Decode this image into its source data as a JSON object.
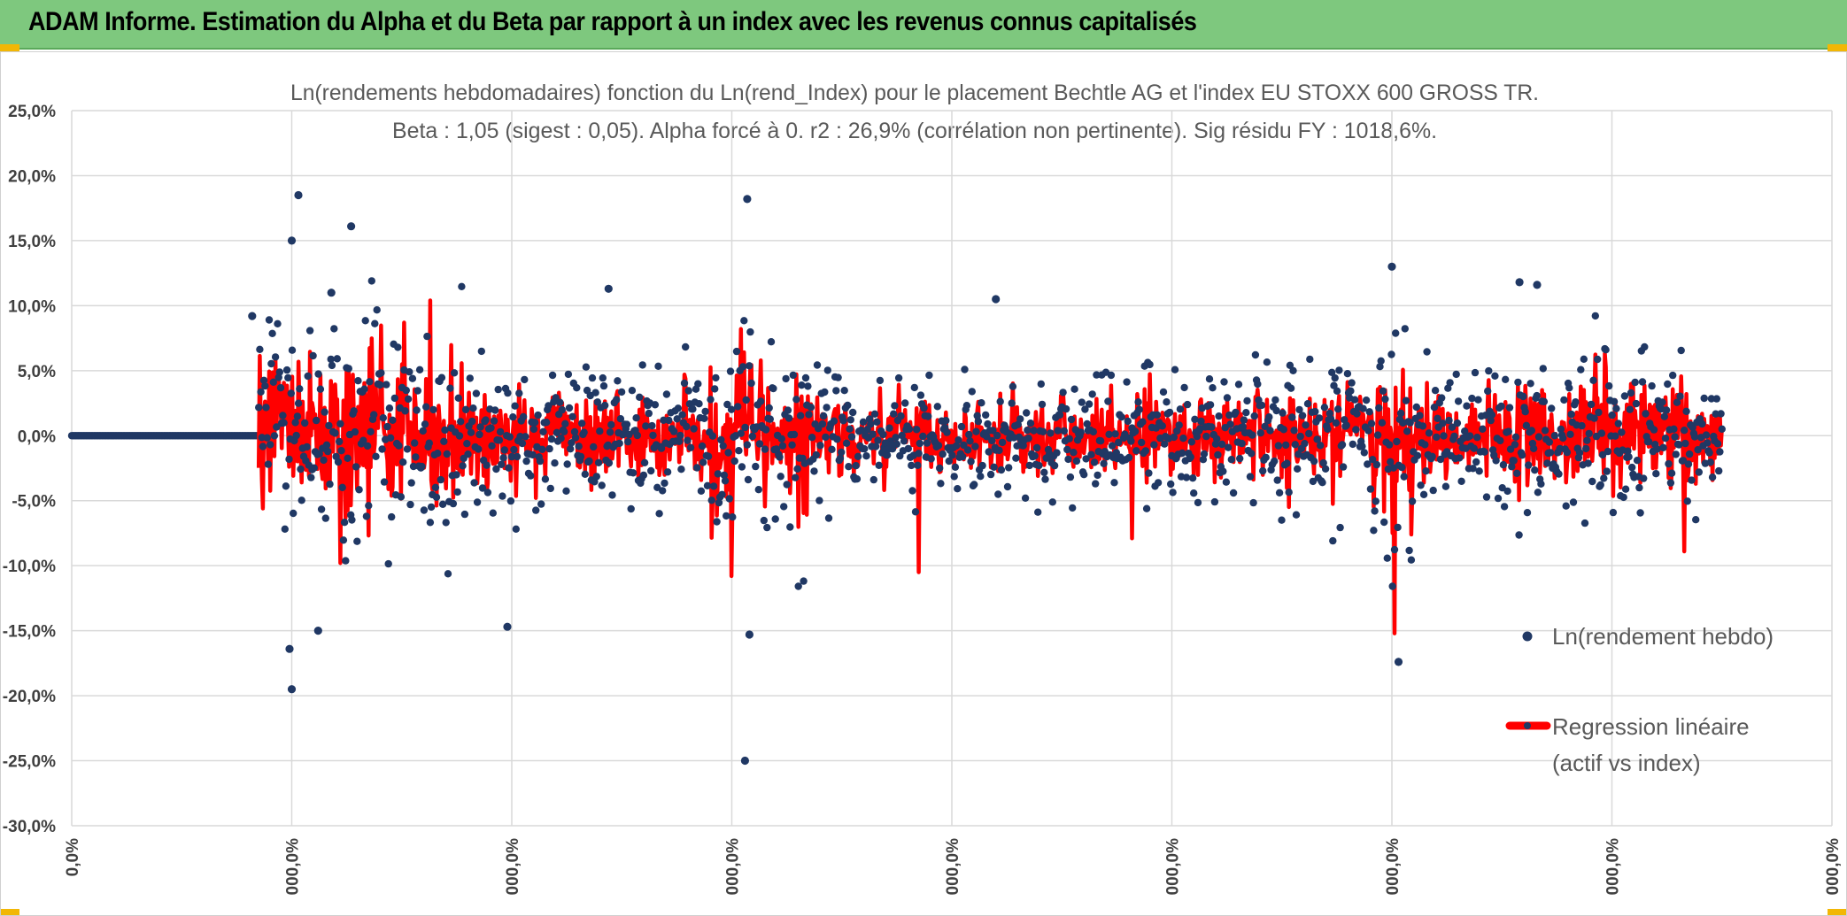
{
  "banner": {
    "title": "ADAM Informe. Estimation du Alpha et du Beta par rapport à un index avec les revenus connus capitalisés"
  },
  "colors": {
    "banner_bg": "#7ec87e",
    "scatter": "#203864",
    "regression": "#ff0000",
    "grid": "#d9d9d9",
    "accent_corner": "#f2b705"
  },
  "chart_data": {
    "type": "scatter",
    "title": "Ln(rendements hebdomadaires) fonction du Ln(rend_Index) pour le placement Bechtle AG et l'index EU STOXX 600 GROSS TR.",
    "subtitle": "Beta : 1,05 (sigest : 0,05). Alpha forcé à 0. r2 : 26,9% (corrélation non pertinente). Sig résidu FY : 1018,6%.",
    "ylim": [
      -30,
      25
    ],
    "yticks": [
      25,
      20,
      15,
      10,
      5,
      0,
      -5,
      -10,
      -15,
      -20,
      -25,
      -30
    ],
    "ytick_labels": [
      "25,0%",
      "20,0%",
      "15,0%",
      "10,0%",
      "5,0%",
      "0,0%",
      "-5,0%",
      "-10,0%",
      "-15,0%",
      "-20,0%",
      "-25,0%",
      "-30,0%"
    ],
    "xlim": [
      0,
      8
    ],
    "xticks": [
      0,
      1,
      2,
      3,
      4,
      5,
      6,
      7,
      8
    ],
    "xtick_labels": [
      "0,0%",
      "000,0%",
      "000,0%",
      "000,0%",
      "000,0%",
      "000,0%",
      "000,0%",
      "000,0%",
      "000,0%"
    ],
    "series": [
      {
        "name": "Ln(rendement hebdo)",
        "type": "scatter",
        "zero_segment_x": [
          0,
          0.85
        ],
        "data_x_range": [
          0.85,
          7.5
        ],
        "n_points": 1400,
        "notable_points": [
          {
            "x": 1.03,
            "y": 18.5
          },
          {
            "x": 1.27,
            "y": 16.1
          },
          {
            "x": 3.07,
            "y": 18.2
          },
          {
            "x": 1.0,
            "y": 15.0
          },
          {
            "x": 1.0,
            "y": -19.5
          },
          {
            "x": 0.99,
            "y": -16.4
          },
          {
            "x": 3.06,
            "y": -25.0
          },
          {
            "x": 3.08,
            "y": -15.3
          },
          {
            "x": 6.03,
            "y": -17.4
          },
          {
            "x": 6.0,
            "y": 13.0
          },
          {
            "x": 1.98,
            "y": -14.7
          },
          {
            "x": 6.58,
            "y": 11.8
          },
          {
            "x": 6.66,
            "y": 11.6
          },
          {
            "x": 2.44,
            "y": 11.3
          },
          {
            "x": 1.18,
            "y": 11.0
          },
          {
            "x": 1.12,
            "y": -15.0
          },
          {
            "x": 0.82,
            "y": 9.2
          },
          {
            "x": 4.2,
            "y": 10.5
          }
        ]
      },
      {
        "name": "Regression linéaire (actif vs index)",
        "type": "line",
        "data_x_range": [
          0.85,
          7.5
        ],
        "notable_points": [
          {
            "x": 1.63,
            "y": 10.4
          },
          {
            "x": 1.51,
            "y": 8.7
          },
          {
            "x": 3.04,
            "y": 8.2
          },
          {
            "x": 6.01,
            "y": -15.2
          },
          {
            "x": 3.0,
            "y": -10.8
          },
          {
            "x": 1.22,
            "y": -9.8
          },
          {
            "x": 3.85,
            "y": -10.5
          },
          {
            "x": 7.33,
            "y": -8.9
          },
          {
            "x": 4.82,
            "y": -7.9
          }
        ]
      }
    ],
    "legend": {
      "scatter_label": "Ln(rendement hebdo)",
      "line_label_1": "Regression linéaire",
      "line_label_2": "(actif vs index)",
      "position": "right"
    }
  }
}
